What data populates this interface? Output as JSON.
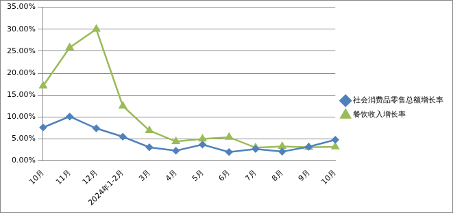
{
  "chart_data": {
    "type": "line",
    "categories": [
      "10月",
      "11月",
      "12月",
      "2024年1-2月",
      "3月",
      "4月",
      "5月",
      "6月",
      "7月",
      "8月",
      "9月",
      "10月"
    ],
    "series": [
      {
        "name": "社会消费品零售总额增长率",
        "color": "#4f81bd",
        "marker": "diamond",
        "values": [
          7.6,
          10.1,
          7.4,
          5.5,
          3.1,
          2.3,
          3.7,
          2.0,
          2.7,
          2.1,
          3.2,
          4.8
        ]
      },
      {
        "name": "餐饮收入增长率",
        "color": "#9bbb59",
        "marker": "triangle",
        "values": [
          17.1,
          25.8,
          30.0,
          12.5,
          6.9,
          4.4,
          5.0,
          5.4,
          3.0,
          3.3,
          3.1,
          3.2
        ]
      }
    ],
    "ylim": [
      0,
      35
    ],
    "yticks": [
      {
        "value": 0,
        "label": "0.00%"
      },
      {
        "value": 5,
        "label": "5.00%"
      },
      {
        "value": 10,
        "label": "10.00%"
      },
      {
        "value": 15,
        "label": "15.00%"
      },
      {
        "value": 20,
        "label": "20.00%"
      },
      {
        "value": 25,
        "label": "25.00%"
      },
      {
        "value": 30,
        "label": "30.00%"
      },
      {
        "value": 35,
        "label": "35.00%"
      }
    ],
    "grid": true,
    "legend": "right"
  }
}
